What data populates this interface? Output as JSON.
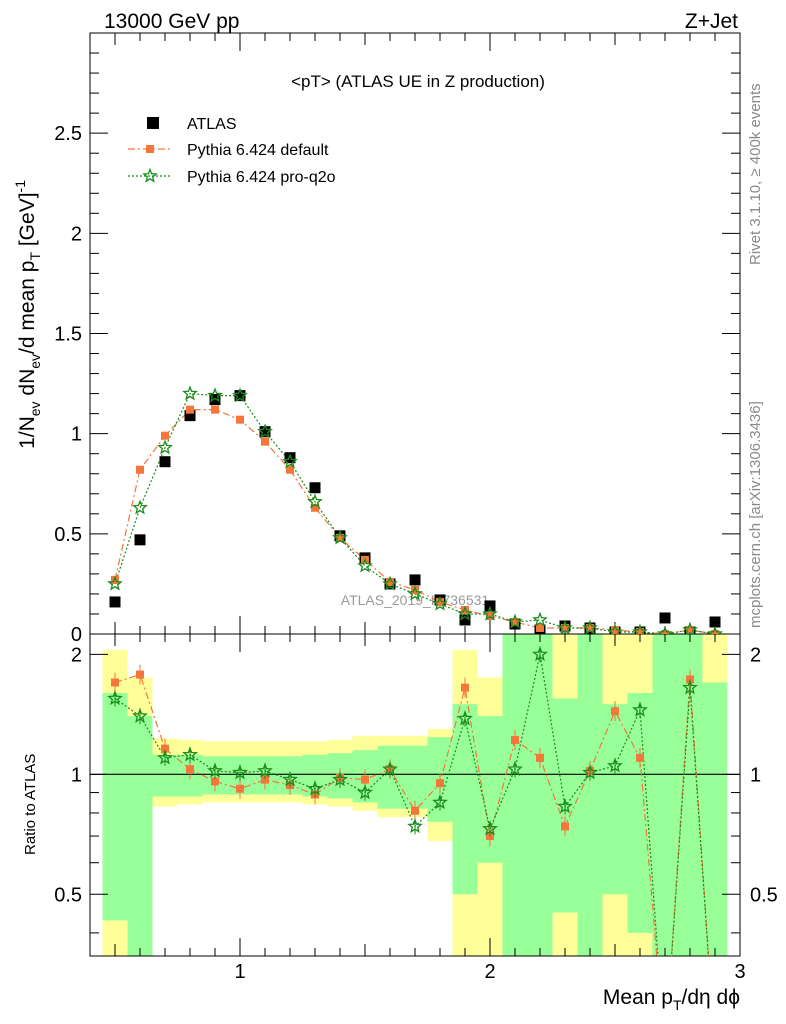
{
  "header": {
    "left": "13000 GeV pp",
    "right": "Z+Jet"
  },
  "side": {
    "rivet": "Rivet 3.1.10, ≥ 400k events",
    "mcplots": "mcplots.cern.ch [arXiv:1306.3436]"
  },
  "chart_data": {
    "type": "scatter",
    "title": "<pT> (ATLAS UE in Z production)",
    "xlabel": "Mean p_T/dη dϕ",
    "ylabel": "1/N_ev dN_ev/d mean p_T [GeV]^-1",
    "ratio_ylabel": "Ratio to ATLAS",
    "watermark": "ATLAS_2019_I1736531",
    "xlim": [
      0.4,
      3.0
    ],
    "ylim": [
      0,
      3.0
    ],
    "ratio_ylim": [
      0.35,
      2.25
    ],
    "x_ticks": [
      "1",
      "2",
      "3"
    ],
    "y_ticks": [
      "0",
      "0.5",
      "1",
      "1.5",
      "2",
      "2.5"
    ],
    "ratio_ticks": [
      "0.5",
      "1",
      "2"
    ],
    "x": [
      0.5,
      0.6,
      0.7,
      0.8,
      0.9,
      1.0,
      1.1,
      1.2,
      1.3,
      1.4,
      1.5,
      1.6,
      1.7,
      1.8,
      1.9,
      2.0,
      2.1,
      2.2,
      2.3,
      2.4,
      2.5,
      2.6,
      2.7,
      2.8,
      2.9
    ],
    "legend_placement": "top-left",
    "series": [
      {
        "name": "ATLAS",
        "color": "#000000",
        "marker": "square",
        "values": [
          0.16,
          0.47,
          0.86,
          1.09,
          1.17,
          1.19,
          1.01,
          0.88,
          0.73,
          0.49,
          0.38,
          0.25,
          0.27,
          0.17,
          0.07,
          0.14,
          0.05,
          0.02,
          0.04,
          0.03,
          0.01,
          0.01,
          0.08,
          0.01,
          0.06
        ],
        "band_inner": [
          [
            0.43,
            1.6
          ],
          [
            0.0,
            1.4
          ],
          [
            0.88,
            1.12
          ],
          [
            0.88,
            1.12
          ],
          [
            0.89,
            1.11
          ],
          [
            0.89,
            1.11
          ],
          [
            0.89,
            1.11
          ],
          [
            0.89,
            1.11
          ],
          [
            0.88,
            1.12
          ],
          [
            0.87,
            1.13
          ],
          [
            0.85,
            1.15
          ],
          [
            0.82,
            1.18
          ],
          [
            0.82,
            1.18
          ],
          [
            0.76,
            1.24
          ],
          [
            0.5,
            1.5
          ],
          [
            0.6,
            1.4
          ],
          [
            0.0,
            2.3
          ],
          [
            0.0,
            2.3
          ],
          [
            0.45,
            1.55
          ],
          [
            0.0,
            2.3
          ],
          [
            0.5,
            1.5
          ],
          [
            0.4,
            1.6
          ],
          [
            0.0,
            2.3
          ],
          [
            0.0,
            2.3
          ],
          [
            0.3,
            1.7
          ]
        ],
        "band_outer": [
          [
            0.35,
            2.05
          ],
          [
            0.65,
            1.75
          ],
          [
            0.83,
            1.23
          ],
          [
            0.84,
            1.22
          ],
          [
            0.85,
            1.21
          ],
          [
            0.85,
            1.21
          ],
          [
            0.85,
            1.21
          ],
          [
            0.85,
            1.21
          ],
          [
            0.84,
            1.21
          ],
          [
            0.83,
            1.22
          ],
          [
            0.81,
            1.25
          ],
          [
            0.78,
            1.25
          ],
          [
            0.78,
            1.25
          ],
          [
            0.68,
            1.3
          ],
          [
            0.35,
            2.05
          ],
          [
            0.35,
            1.75
          ],
          [
            0.0,
            2.3
          ],
          [
            0.0,
            2.3
          ],
          [
            0.35,
            2.3
          ],
          [
            0.35,
            2.3
          ],
          [
            0.35,
            2.3
          ],
          [
            0.35,
            2.3
          ],
          [
            0.35,
            2.3
          ],
          [
            0.35,
            2.3
          ],
          [
            0.35,
            2.3
          ]
        ]
      },
      {
        "name": "Pythia 6.424 default",
        "color": "#f3763a",
        "marker": "square-small",
        "line": "dashdot",
        "values": [
          0.27,
          0.82,
          0.99,
          1.12,
          1.12,
          1.07,
          0.96,
          0.82,
          0.63,
          0.48,
          0.37,
          0.26,
          0.22,
          0.16,
          0.12,
          0.09,
          0.06,
          0.03,
          0.03,
          0.03,
          0.02,
          0.01,
          0.0,
          0.02,
          0.0
        ],
        "ratio": [
          1.7,
          1.78,
          1.16,
          1.03,
          0.96,
          0.92,
          0.97,
          0.94,
          0.89,
          0.98,
          0.97,
          1.03,
          0.81,
          0.95,
          1.65,
          0.7,
          1.22,
          1.1,
          0.74,
          1.02,
          1.44,
          1.1,
          0.0,
          1.73,
          0.0
        ]
      },
      {
        "name": "Pythia 6.424 pro-q2o",
        "color": "#1a8c1a",
        "marker": "star",
        "line": "dotted",
        "values": [
          0.25,
          0.63,
          0.93,
          1.2,
          1.19,
          1.19,
          1.01,
          0.86,
          0.66,
          0.48,
          0.34,
          0.25,
          0.2,
          0.15,
          0.1,
          0.1,
          0.06,
          0.07,
          0.03,
          0.03,
          0.01,
          0.01,
          0.0,
          0.02,
          0.0
        ],
        "ratio": [
          1.55,
          1.4,
          1.1,
          1.12,
          1.02,
          1.01,
          1.02,
          0.97,
          0.92,
          0.97,
          0.9,
          1.03,
          0.74,
          0.85,
          1.38,
          0.73,
          1.03,
          2.0,
          0.83,
          1.01,
          1.05,
          1.45,
          0.0,
          1.65,
          0.0
        ]
      }
    ]
  }
}
